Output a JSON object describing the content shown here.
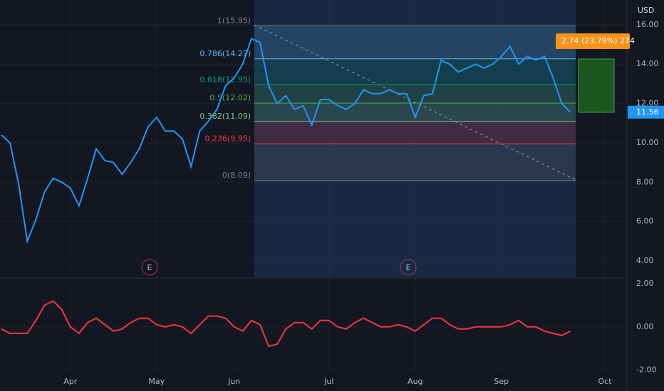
{
  "chart_data": [
    {
      "type": "line",
      "currency": "USD",
      "measure_label": "2.74 (23.79%) 274",
      "earnings_markers": [
        "E",
        "E"
      ],
      "categories": [
        null,
        null,
        null,
        null,
        null,
        null,
        null,
        null,
        "Apr",
        null,
        null,
        null,
        null,
        null,
        null,
        null,
        null,
        null,
        "May",
        null,
        null,
        null,
        null,
        null,
        null,
        null,
        null,
        "Jun",
        null,
        null,
        null,
        null,
        null,
        null,
        null,
        null,
        null,
        null,
        "Jul",
        null,
        null,
        null,
        null,
        null,
        null,
        null,
        null,
        null,
        "Aug",
        null,
        null,
        null,
        null,
        null,
        null,
        null,
        null,
        null,
        "Sep",
        null,
        null,
        null,
        null,
        null,
        null,
        null,
        null,
        null,
        null,
        null,
        "Oct"
      ],
      "series": [
        {
          "color": "#2196f3",
          "values": [
            10.4,
            10.0,
            7.9,
            5.0,
            6.1,
            7.5,
            8.2,
            8.0,
            7.7,
            6.8,
            8.2,
            9.7,
            9.1,
            9.0,
            8.4,
            9.0,
            9.7,
            10.8,
            11.3,
            10.6,
            10.6,
            10.2,
            8.8,
            10.6,
            11.1,
            11.7,
            12.9,
            13.3,
            14.0,
            15.3,
            15.1,
            12.9,
            12.0,
            12.4,
            11.7,
            11.9,
            10.9,
            12.2,
            12.2,
            11.9,
            11.7,
            12.0,
            12.7,
            12.5,
            12.5,
            12.7,
            12.5,
            12.5,
            11.3,
            12.4,
            12.5,
            14.2,
            14.0,
            13.6,
            13.8,
            14.0,
            13.8,
            14.0,
            14.4,
            14.9,
            14.0,
            14.4,
            14.2,
            14.4,
            13.3,
            12.0,
            11.56,
            null,
            null,
            null,
            null
          ]
        }
      ],
      "annotations": [
        {
          "label": "1(15.95)",
          "value": 15.95,
          "color": "#787b86"
        },
        {
          "label": "0.786(14.27)",
          "value": 14.27,
          "color": "#64b5f6"
        },
        {
          "label": "0.618(12.95)",
          "value": 12.95,
          "color": "#089981"
        },
        {
          "label": "0.5(12.02)",
          "value": 12.02,
          "color": "#4caf50"
        },
        {
          "label": "0.382(11.09)",
          "value": 11.09,
          "color": "#81c784"
        },
        {
          "label": "0.236(9.95)",
          "value": 9.95,
          "color": "#f23645"
        },
        {
          "label": "0(8.09)",
          "value": 8.09,
          "color": "#787b86"
        }
      ],
      "ylim": [
        3.17,
        17.26
      ],
      "yticks": [
        {
          "value": 16,
          "label": "16.00"
        },
        {
          "value": 14,
          "label": "14.00"
        },
        {
          "value": 12,
          "label": "12.00"
        },
        {
          "value": 10,
          "label": "10.00"
        },
        {
          "value": 8,
          "label": "8.00"
        },
        {
          "value": 6,
          "label": "6.00"
        },
        {
          "value": 4,
          "label": "4.00"
        }
      ],
      "grid": true
    },
    {
      "type": "line",
      "series": [
        {
          "color": "#f23645",
          "values": [
            -0.1,
            -0.3,
            -0.3,
            -0.3,
            0.3,
            1.0,
            1.2,
            0.8,
            0.0,
            -0.3,
            0.2,
            0.4,
            0.1,
            -0.2,
            -0.1,
            0.2,
            0.4,
            0.4,
            0.1,
            0.0,
            0.1,
            0.0,
            -0.3,
            0.1,
            0.5,
            0.5,
            0.4,
            0.0,
            -0.2,
            0.3,
            0.1,
            -0.9,
            -0.8,
            -0.1,
            0.2,
            0.2,
            -0.1,
            0.3,
            0.3,
            0.0,
            -0.1,
            0.2,
            0.4,
            0.2,
            0.0,
            0.0,
            0.1,
            0.0,
            -0.2,
            0.1,
            0.4,
            0.4,
            0.1,
            -0.1,
            -0.1,
            0.0,
            0.0,
            0.0,
            0.0,
            0.1,
            0.3,
            0.0,
            0.0,
            -0.2,
            -0.3,
            -0.4,
            -0.2,
            null,
            null,
            null,
            null
          ]
        }
      ],
      "ylim": [
        -2.15,
        2.2
      ],
      "yticks": [
        {
          "value": 2,
          "label": "2.00"
        },
        {
          "value": 0,
          "label": "0.00"
        },
        {
          "value": -2,
          "label": "-2.00"
        }
      ],
      "grid": true
    }
  ]
}
